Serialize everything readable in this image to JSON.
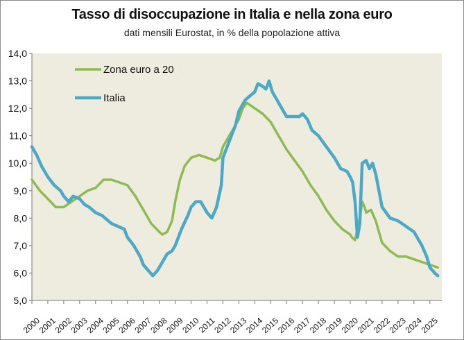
{
  "chart_data": {
    "type": "line",
    "title": "Tasso di disoccupazione  in Italia e nella zona euro",
    "subtitle": "dati mensili Eurostat, in % della popolazione attiva",
    "xlabel": "",
    "ylabel": "",
    "xlim": [
      2000,
      2025.75
    ],
    "ylim": [
      5.0,
      14.0
    ],
    "y_ticks": [
      "5,0",
      "6,0",
      "7,0",
      "8,0",
      "9,0",
      "10,0",
      "11,0",
      "12,0",
      "13,0",
      "14,0"
    ],
    "x_ticks": [
      "2000",
      "2001",
      "2002",
      "2003",
      "2004",
      "2005",
      "2006",
      "2007",
      "2008",
      "2009",
      "2010",
      "2011",
      "2012",
      "2013",
      "2014",
      "2015",
      "2016",
      "2017",
      "2018",
      "2019",
      "2020",
      "2021",
      "2022",
      "2023",
      "2024",
      "2025"
    ],
    "grid": false,
    "legend": "top-left",
    "plot_background": "#eeecdf",
    "series": [
      {
        "name": "Zona euro a 20",
        "color": "#8dbb4f",
        "x": [
          2000.0,
          2000.5,
          2001.0,
          2001.5,
          2002.0,
          2002.5,
          2003.0,
          2003.5,
          2004.0,
          2004.5,
          2005.0,
          2005.5,
          2006.0,
          2006.5,
          2007.0,
          2007.5,
          2008.0,
          2008.2,
          2008.5,
          2008.8,
          2009.0,
          2009.3,
          2009.6,
          2010.0,
          2010.5,
          2011.0,
          2011.5,
          2011.8,
          2012.0,
          2012.5,
          2013.0,
          2013.25,
          2013.5,
          2014.0,
          2014.5,
          2015.0,
          2015.5,
          2016.0,
          2016.5,
          2017.0,
          2017.5,
          2018.0,
          2018.5,
          2019.0,
          2019.5,
          2020.0,
          2020.1,
          2020.3,
          2020.45,
          2020.6,
          2020.75,
          2020.9,
          2021.0,
          2021.3,
          2021.6,
          2022.0,
          2022.5,
          2023.0,
          2023.5,
          2024.0,
          2024.5,
          2025.0,
          2025.5
        ],
        "values": [
          9.4,
          9.0,
          8.7,
          8.4,
          8.4,
          8.6,
          8.8,
          9.0,
          9.1,
          9.4,
          9.4,
          9.3,
          9.2,
          8.8,
          8.3,
          7.8,
          7.5,
          7.4,
          7.5,
          7.9,
          8.6,
          9.4,
          9.9,
          10.2,
          10.3,
          10.2,
          10.1,
          10.2,
          10.6,
          11.1,
          11.6,
          12.0,
          12.2,
          12.0,
          11.8,
          11.5,
          11.0,
          10.5,
          10.1,
          9.7,
          9.2,
          8.8,
          8.3,
          7.9,
          7.6,
          7.4,
          7.3,
          7.2,
          7.6,
          8.0,
          8.6,
          8.4,
          8.2,
          8.3,
          7.9,
          7.1,
          6.8,
          6.6,
          6.6,
          6.5,
          6.4,
          6.3,
          6.2
        ]
      },
      {
        "name": "Italia",
        "color": "#4aa8c8",
        "x": [
          2000.0,
          2000.3,
          2000.6,
          2001.0,
          2001.4,
          2001.8,
          2002.0,
          2002.3,
          2002.6,
          2003.0,
          2003.3,
          2003.6,
          2004.0,
          2004.4,
          2004.8,
          2005.0,
          2005.4,
          2005.8,
          2006.0,
          2006.4,
          2006.8,
          2007.0,
          2007.3,
          2007.6,
          2007.9,
          2008.2,
          2008.5,
          2008.8,
          2009.0,
          2009.4,
          2009.8,
          2010.0,
          2010.3,
          2010.6,
          2010.8,
          2011.0,
          2011.3,
          2011.6,
          2011.9,
          2012.0,
          2012.4,
          2012.8,
          2013.0,
          2013.4,
          2013.8,
          2014.0,
          2014.2,
          2014.5,
          2014.7,
          2014.9,
          2015.1,
          2015.4,
          2015.7,
          2016.0,
          2016.4,
          2016.8,
          2017.0,
          2017.3,
          2017.6,
          2018.0,
          2018.5,
          2019.0,
          2019.4,
          2019.8,
          2020.0,
          2020.15,
          2020.3,
          2020.45,
          2020.6,
          2020.75,
          2021.0,
          2021.2,
          2021.4,
          2021.6,
          2022.0,
          2022.5,
          2023.0,
          2023.5,
          2024.0,
          2024.2,
          2024.5,
          2024.8,
          2025.0,
          2025.3,
          2025.5
        ],
        "values": [
          10.6,
          10.3,
          9.9,
          9.5,
          9.2,
          9.0,
          8.8,
          8.6,
          8.8,
          8.7,
          8.5,
          8.4,
          8.2,
          8.1,
          7.9,
          7.8,
          7.7,
          7.6,
          7.3,
          7.0,
          6.6,
          6.3,
          6.1,
          5.9,
          6.1,
          6.4,
          6.7,
          6.8,
          7.0,
          7.6,
          8.1,
          8.4,
          8.6,
          8.6,
          8.4,
          8.2,
          8.0,
          8.4,
          9.2,
          10.2,
          10.8,
          11.4,
          11.9,
          12.3,
          12.5,
          12.6,
          12.9,
          12.8,
          12.7,
          13.0,
          12.6,
          12.3,
          12.0,
          11.7,
          11.7,
          11.7,
          11.8,
          11.6,
          11.2,
          11.0,
          10.6,
          10.2,
          9.8,
          9.7,
          9.5,
          9.3,
          8.6,
          7.3,
          7.8,
          10.0,
          10.1,
          9.8,
          10.0,
          9.6,
          8.4,
          8.0,
          7.9,
          7.7,
          7.5,
          7.3,
          7.0,
          6.6,
          6.2,
          6.0,
          5.9
        ]
      }
    ]
  }
}
